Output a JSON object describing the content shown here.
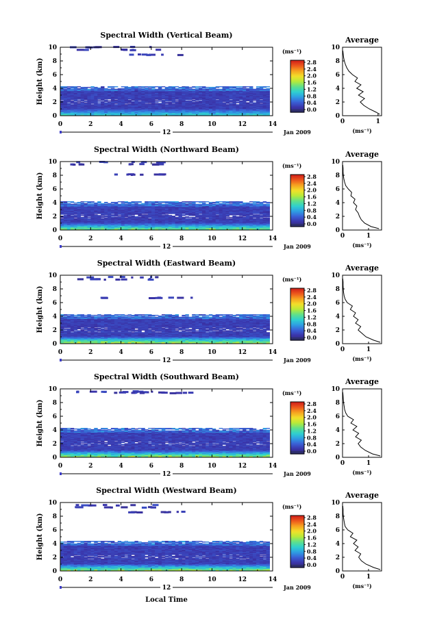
{
  "chart_data": [
    {
      "type": "heatmap",
      "title": "Spectral Width (Vertical Beam)",
      "ylabel": "Height (km)",
      "x_ticks": [
        "0",
        "2",
        "4",
        "6",
        "8",
        "10",
        "12",
        "14"
      ],
      "y_ticks": [
        "0",
        "2",
        "4",
        "6",
        "8",
        "10"
      ],
      "xlim": [
        0,
        14
      ],
      "ylim": [
        0,
        10
      ],
      "colorbar": {
        "unit": "(ms⁻¹)",
        "ticks": [
          "0.0",
          "0.4",
          "0.8",
          "1.2",
          "1.6",
          "2.0",
          "2.4",
          "2.8"
        ],
        "range": [
          0,
          2.8
        ]
      },
      "date_bar": {
        "label": "12",
        "date": "Jan 2009"
      },
      "cloud_top_km": 4.3,
      "sparse_top_km": [
        9.9,
        9.5,
        8.8
      ],
      "surface_layer_intensity": 0.7,
      "average_profile": {
        "title": "Average",
        "xlabel": "(ms⁻¹)",
        "x_ticks": [
          "0",
          "1"
        ],
        "y_ticks": [
          "0",
          "2",
          "4",
          "6",
          "8",
          "10"
        ],
        "xlim": [
          0,
          1.1
        ],
        "ylim": [
          0,
          10
        ],
        "height": [
          0.2,
          0.5,
          1,
          1.5,
          2,
          2.5,
          3,
          3.5,
          4,
          4.5,
          5,
          5.5,
          6,
          6.5,
          7,
          7.5,
          8,
          8.5,
          9,
          9.5
        ],
        "values": [
          1.05,
          0.95,
          0.75,
          0.6,
          0.5,
          0.62,
          0.45,
          0.58,
          0.4,
          0.52,
          0.35,
          0.42,
          0.28,
          0.18,
          0.12,
          0.08,
          0.05,
          0.03,
          0.02,
          0.01
        ]
      }
    },
    {
      "type": "heatmap",
      "title": "Spectral Width (Northward Beam)",
      "ylabel": "Height (km)",
      "x_ticks": [
        "0",
        "2",
        "4",
        "6",
        "8",
        "10",
        "12",
        "14"
      ],
      "y_ticks": [
        "0",
        "2",
        "4",
        "6",
        "8",
        "10"
      ],
      "xlim": [
        0,
        14
      ],
      "ylim": [
        0,
        10
      ],
      "colorbar": {
        "unit": "(ms⁻¹)",
        "ticks": [
          "0.0",
          "0.4",
          "0.8",
          "1.2",
          "1.6",
          "2.0",
          "2.4",
          "2.8"
        ],
        "range": [
          0,
          2.8
        ]
      },
      "date_bar": {
        "label": "12",
        "date": "Jan 2009"
      },
      "cloud_top_km": 4.2,
      "sparse_top_km": [
        9.8,
        9.5,
        8.0
      ],
      "surface_layer_intensity": 1.0,
      "average_profile": {
        "title": "Average",
        "xlabel": "(ms⁻¹)",
        "x_ticks": [
          "0",
          "1"
        ],
        "y_ticks": [
          "0",
          "2",
          "4",
          "6",
          "8",
          "10"
        ],
        "xlim": [
          0,
          1.5
        ],
        "ylim": [
          0,
          10
        ],
        "height": [
          0.2,
          0.5,
          1,
          1.5,
          2,
          2.5,
          3,
          3.5,
          4,
          4.5,
          5,
          5.5,
          6,
          6.5,
          7,
          7.5,
          8,
          8.5,
          9,
          9.5
        ],
        "values": [
          1.4,
          1.1,
          0.85,
          0.72,
          0.65,
          0.6,
          0.5,
          0.55,
          0.42,
          0.48,
          0.32,
          0.35,
          0.22,
          0.12,
          0.08,
          0.05,
          0.03,
          0.02,
          0.02,
          0.01
        ]
      }
    },
    {
      "type": "heatmap",
      "title": "Spectral Width (Eastward Beam)",
      "ylabel": "Height (km)",
      "x_ticks": [
        "0",
        "2",
        "4",
        "6",
        "8",
        "10",
        "12",
        "14"
      ],
      "y_ticks": [
        "0",
        "2",
        "4",
        "6",
        "8",
        "10"
      ],
      "xlim": [
        0,
        14
      ],
      "ylim": [
        0,
        10
      ],
      "colorbar": {
        "unit": "(ms⁻¹)",
        "ticks": [
          "0.0",
          "0.4",
          "0.8",
          "1.2",
          "1.6",
          "2.0",
          "2.4",
          "2.8"
        ],
        "range": [
          0,
          2.8
        ]
      },
      "date_bar": {
        "label": "12",
        "date": "Jan 2009"
      },
      "cloud_top_km": 4.3,
      "sparse_top_km": [
        9.6,
        9.3,
        6.6
      ],
      "surface_layer_intensity": 1.2,
      "average_profile": {
        "title": "Average",
        "xlabel": "(ms⁻¹)",
        "x_ticks": [
          "0",
          "1"
        ],
        "y_ticks": [
          "0",
          "2",
          "4",
          "6",
          "8",
          "10"
        ],
        "xlim": [
          0,
          1.5
        ],
        "ylim": [
          0,
          10
        ],
        "height": [
          0.2,
          0.5,
          1,
          1.5,
          2,
          2.5,
          3,
          3.5,
          4,
          4.5,
          5,
          5.5,
          6,
          6.5,
          7,
          7.5,
          8,
          8.5,
          9,
          9.5
        ],
        "values": [
          1.45,
          1.2,
          0.9,
          0.75,
          0.6,
          0.7,
          0.5,
          0.6,
          0.42,
          0.5,
          0.3,
          0.38,
          0.18,
          0.1,
          0.06,
          0.04,
          0.03,
          0.02,
          0.02,
          0.01
        ]
      }
    },
    {
      "type": "heatmap",
      "title": "Spectral Width (Southward Beam)",
      "ylabel": "Height (km)",
      "x_ticks": [
        "0",
        "2",
        "4",
        "6",
        "8",
        "10",
        "12",
        "14"
      ],
      "y_ticks": [
        "0",
        "2",
        "4",
        "6",
        "8",
        "10"
      ],
      "xlim": [
        0,
        14
      ],
      "ylim": [
        0,
        10
      ],
      "colorbar": {
        "unit": "(ms⁻¹)",
        "ticks": [
          "0.0",
          "0.4",
          "0.8",
          "1.2",
          "1.6",
          "2.0",
          "2.4",
          "2.8"
        ],
        "range": [
          0,
          2.8
        ]
      },
      "date_bar": {
        "label": "12",
        "date": "Jan 2009"
      },
      "cloud_top_km": 4.3,
      "sparse_top_km": [
        9.5,
        9.4,
        9.3
      ],
      "surface_layer_intensity": 1.1,
      "average_profile": {
        "title": "Average",
        "xlabel": "(ms⁻¹)",
        "x_ticks": [
          "0",
          "1"
        ],
        "y_ticks": [
          "0",
          "2",
          "4",
          "6",
          "8",
          "10"
        ],
        "xlim": [
          0,
          1.5
        ],
        "ylim": [
          0,
          10
        ],
        "height": [
          0.2,
          0.5,
          1,
          1.5,
          2,
          2.5,
          3,
          3.5,
          4,
          4.5,
          5,
          5.5,
          6,
          6.5,
          7,
          7.5,
          8,
          8.5,
          9,
          9.5
        ],
        "values": [
          1.45,
          1.15,
          0.88,
          0.7,
          0.6,
          0.72,
          0.5,
          0.62,
          0.4,
          0.55,
          0.32,
          0.42,
          0.2,
          0.12,
          0.08,
          0.06,
          0.04,
          0.03,
          0.02,
          0.01
        ]
      }
    },
    {
      "type": "heatmap",
      "title": "Spectral Width (Westward Beam)",
      "ylabel": "Height (km)",
      "x_ticks": [
        "0",
        "2",
        "4",
        "6",
        "8",
        "10",
        "12",
        "14"
      ],
      "y_ticks": [
        "0",
        "2",
        "4",
        "6",
        "8",
        "10"
      ],
      "xlim": [
        0,
        14
      ],
      "ylim": [
        0,
        10
      ],
      "colorbar": {
        "unit": "(ms⁻¹)",
        "ticks": [
          "0.0",
          "0.4",
          "0.8",
          "1.2",
          "1.6",
          "2.0",
          "2.4",
          "2.8"
        ],
        "range": [
          0,
          2.8
        ]
      },
      "date_bar": {
        "label": "12",
        "date": "Jan 2009"
      },
      "cloud_top_km": 4.4,
      "sparse_top_km": [
        9.5,
        9.2,
        8.5
      ],
      "surface_layer_intensity": 1.1,
      "average_profile": {
        "title": "Average",
        "xlabel": "(ms⁻¹)",
        "x_ticks": [
          "0",
          "1"
        ],
        "y_ticks": [
          "0",
          "2",
          "4",
          "6",
          "8",
          "10"
        ],
        "xlim": [
          0,
          1.5
        ],
        "ylim": [
          0,
          10
        ],
        "height": [
          0.2,
          0.5,
          1,
          1.5,
          2,
          2.5,
          3,
          3.5,
          4,
          4.5,
          5,
          5.5,
          6,
          6.5,
          7,
          7.5,
          8,
          8.5,
          9,
          9.5
        ],
        "values": [
          1.45,
          1.2,
          0.9,
          0.72,
          0.62,
          0.7,
          0.48,
          0.6,
          0.42,
          0.55,
          0.3,
          0.4,
          0.2,
          0.1,
          0.07,
          0.05,
          0.03,
          0.02,
          0.02,
          0.01
        ]
      }
    }
  ],
  "x_axis_label": "Local Time",
  "colors": {
    "background": "#ffffff",
    "ink": "#000000",
    "colorbar_stops": [
      "#2e2e6e",
      "#3a33a8",
      "#3a5fd6",
      "#2f9ee3",
      "#2fd0cf",
      "#5fe08a",
      "#b6ea3a",
      "#f2e02a",
      "#f7a521",
      "#ee5a1c",
      "#d0201a"
    ]
  }
}
